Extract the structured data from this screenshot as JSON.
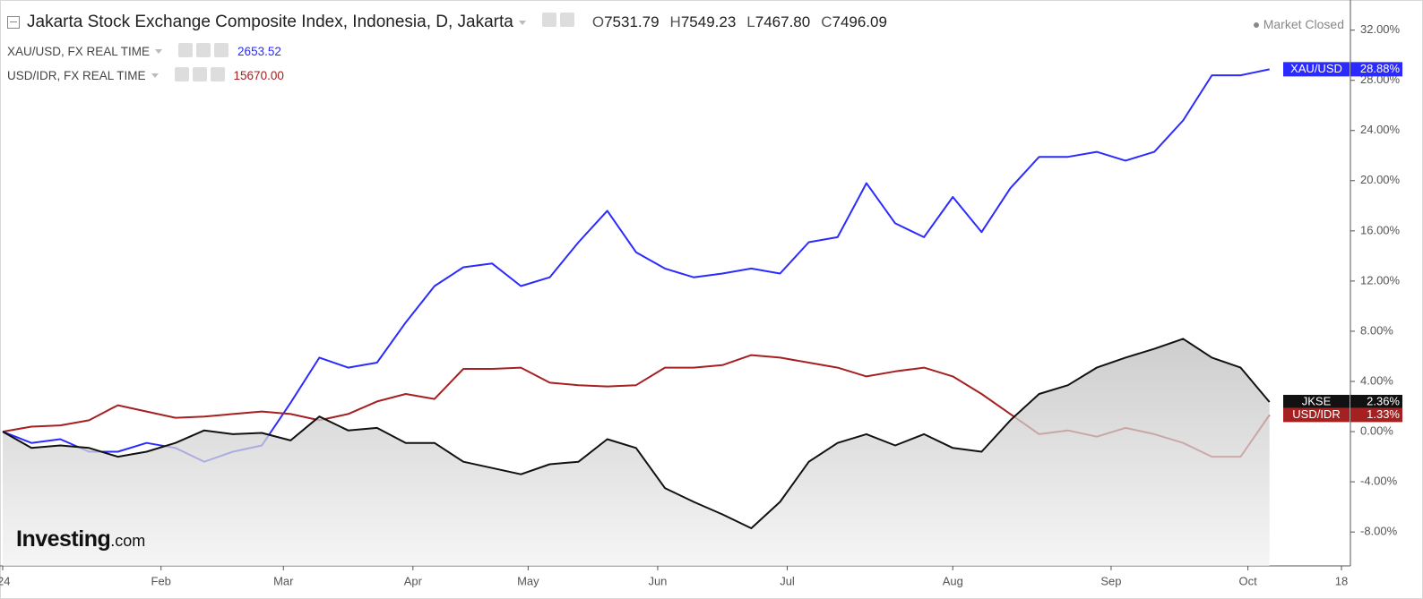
{
  "header": {
    "title": "Jakarta Stock Exchange Composite Index, Indonesia, D, Jakarta",
    "ohlc": [
      {
        "key": "O",
        "value": "7531.79"
      },
      {
        "key": "H",
        "value": "7549.23"
      },
      {
        "key": "L",
        "value": "7467.80"
      },
      {
        "key": "C",
        "value": "7496.09"
      }
    ],
    "status": "Market Closed",
    "legend": [
      {
        "text": "XAU/USD, FX REAL TIME",
        "price": "2653.52",
        "color": "#2b2bff"
      },
      {
        "text": "USD/IDR, FX REAL TIME",
        "price": "15670.00",
        "color": "#a52020"
      }
    ],
    "logo": "Investing",
    "logo_suffix": ".com"
  },
  "chart_data": {
    "type": "line",
    "x": [
      0,
      4,
      8,
      12,
      16,
      20,
      24,
      28,
      32,
      36,
      40,
      44,
      48,
      52,
      56,
      60,
      64,
      68,
      72,
      76,
      80,
      84,
      88,
      92,
      96,
      100,
      104,
      108,
      112,
      116,
      120,
      124,
      128,
      132,
      136,
      140,
      144,
      148,
      152,
      156,
      160,
      164,
      168,
      172,
      176
    ],
    "xlim": [
      0,
      186
    ],
    "xticks": [
      {
        "value": 0,
        "label": "'24"
      },
      {
        "value": 22,
        "label": "Feb"
      },
      {
        "value": 39,
        "label": "Mar"
      },
      {
        "value": 57,
        "label": "Apr"
      },
      {
        "value": 73,
        "label": "May"
      },
      {
        "value": 91,
        "label": "Jun"
      },
      {
        "value": 109,
        "label": "Jul"
      },
      {
        "value": 132,
        "label": "Aug"
      },
      {
        "value": 154,
        "label": "Sep"
      },
      {
        "value": 173,
        "label": "Oct"
      },
      {
        "value": 186,
        "label": "18"
      }
    ],
    "ylim": [
      -10.7,
      34.4
    ],
    "yticks": [
      {
        "value": -8,
        "label": "-8.00%"
      },
      {
        "value": -4,
        "label": "-4.00%"
      },
      {
        "value": 0,
        "label": "0.00%"
      },
      {
        "value": 4,
        "label": "4.00%"
      },
      {
        "value": 8,
        "label": "8.00%"
      },
      {
        "value": 12,
        "label": "12.00%"
      },
      {
        "value": 16,
        "label": "16.00%"
      },
      {
        "value": 20,
        "label": "20.00%"
      },
      {
        "value": 24,
        "label": "24.00%"
      },
      {
        "value": 28,
        "label": "28.00%"
      },
      {
        "value": 32,
        "label": "32.00%"
      }
    ],
    "grid": false,
    "series": [
      {
        "name": "JKSE",
        "color": "#111111",
        "area": true,
        "end_label": "2.36%",
        "values": [
          0,
          -1.3,
          -1.1,
          -1.3,
          -2.0,
          -1.6,
          -0.9,
          0.1,
          -0.2,
          -0.1,
          -0.7,
          1.2,
          0.1,
          0.3,
          -0.9,
          -0.9,
          -2.4,
          -2.9,
          -3.4,
          -2.6,
          -2.4,
          -0.6,
          -1.3,
          -4.5,
          -5.6,
          -6.6,
          -7.7,
          -5.6,
          -2.4,
          -0.9,
          -0.2,
          -1.1,
          -0.2,
          -1.3,
          -1.6,
          0.9,
          3.0,
          3.7,
          5.1,
          5.9,
          6.6,
          7.4,
          5.9,
          5.1,
          2.36
        ]
      },
      {
        "name": "XAU/USD",
        "color": "#2b2bff",
        "area": false,
        "end_label": "28.88%",
        "values": [
          0,
          -0.9,
          -0.6,
          -1.6,
          -1.6,
          -0.9,
          -1.3,
          -2.4,
          -1.6,
          -1.1,
          2.3,
          5.9,
          5.1,
          5.5,
          8.7,
          11.6,
          13.1,
          13.4,
          11.6,
          12.3,
          15.1,
          17.6,
          14.3,
          13.0,
          12.3,
          12.6,
          13.0,
          12.6,
          15.1,
          15.5,
          19.8,
          16.6,
          15.5,
          18.7,
          15.9,
          19.4,
          21.9,
          21.9,
          22.3,
          21.6,
          22.3,
          24.8,
          28.4,
          28.4,
          28.88
        ]
      },
      {
        "name": "USD/IDR",
        "color": "#a52020",
        "area": false,
        "end_label": "1.33%",
        "values": [
          0,
          0.4,
          0.5,
          0.9,
          2.1,
          1.6,
          1.1,
          1.2,
          1.4,
          1.6,
          1.4,
          0.9,
          1.4,
          2.4,
          3.0,
          2.6,
          5.0,
          5.0,
          5.1,
          3.9,
          3.7,
          3.6,
          3.7,
          5.1,
          5.1,
          5.3,
          6.1,
          5.9,
          5.5,
          5.1,
          4.4,
          4.8,
          5.1,
          4.4,
          3.0,
          1.4,
          -0.2,
          0.1,
          -0.4,
          0.3,
          -0.2,
          -0.9,
          -2.0,
          -2.0,
          1.33
        ]
      }
    ]
  }
}
